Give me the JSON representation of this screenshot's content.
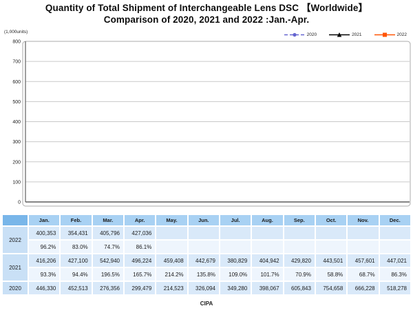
{
  "title": {
    "line1": "Quantity of Total Shipment of Interchangeable Lens DSC 【Worldwide】",
    "line2": "Comparison of 2020, 2021 and 2022 :Jan.-Apr."
  },
  "chart": {
    "unit_label": "(1,000units)"
  },
  "chart_data": {
    "type": "line",
    "title": "Quantity of Total Shipment of Interchangeable Lens DSC 【Worldwide】 Comparison of 2020, 2021 and 2022 :Jan.-Apr.",
    "categories": [
      "Jan.",
      "Feb.",
      "Mar.",
      "Apr.",
      "May.",
      "Jun.",
      "Jul.",
      "Aug.",
      "Sep.",
      "Oct.",
      "Nov.",
      "Dec."
    ],
    "unit": "1,000units",
    "ylim": [
      0,
      800
    ],
    "y_ticks": [
      0,
      100,
      200,
      300,
      400,
      500,
      600,
      700,
      800
    ],
    "grid": true,
    "legend_position": "top-right",
    "series": [
      {
        "name": "2020",
        "color": "#6565D0",
        "style": "dashed",
        "marker": "circle",
        "values": [
          446330,
          452513,
          276356,
          299479,
          214523,
          326094,
          349280,
          398067,
          605843,
          754658,
          666228,
          518278
        ]
      },
      {
        "name": "2021",
        "color": "#000000",
        "style": "solid",
        "marker": "triangle",
        "values": [
          416206,
          427100,
          542940,
          496224,
          459408,
          442679,
          380829,
          404942,
          429820,
          443501,
          457601,
          447021
        ]
      },
      {
        "name": "2022",
        "color": "#FF5404",
        "style": "solid",
        "marker": "square",
        "values": [
          400353,
          354431,
          405796,
          427036,
          null,
          null,
          null,
          null,
          null,
          null,
          null,
          null
        ]
      }
    ]
  },
  "table": {
    "months": [
      "Jan.",
      "Feb.",
      "Mar.",
      "Apr.",
      "May.",
      "Jun.",
      "Jul.",
      "Aug.",
      "Sep.",
      "Oct.",
      "Nov.",
      "Dec."
    ],
    "groups": [
      {
        "year": "2022",
        "rows": [
          {
            "type": "values",
            "cells": [
              "400,353",
              "354,431",
              "405,796",
              "427,036",
              "",
              "",
              "",
              "",
              "",
              "",
              "",
              ""
            ]
          },
          {
            "type": "percent",
            "cells": [
              "96.2%",
              "83.0%",
              "74.7%",
              "86.1%",
              "",
              "",
              "",
              "",
              "",
              "",
              "",
              ""
            ]
          }
        ]
      },
      {
        "year": "2021",
        "rows": [
          {
            "type": "values",
            "cells": [
              "416,206",
              "427,100",
              "542,940",
              "496,224",
              "459,408",
              "442,679",
              "380,829",
              "404,942",
              "429,820",
              "443,501",
              "457,601",
              "447,021"
            ]
          },
          {
            "type": "percent",
            "cells": [
              "93.3%",
              "94.4%",
              "196.5%",
              "165.7%",
              "214.2%",
              "135.8%",
              "109.0%",
              "101.7%",
              "70.9%",
              "58.8%",
              "68.7%",
              "86.3%"
            ]
          }
        ]
      },
      {
        "year": "2020",
        "rows": [
          {
            "type": "values",
            "cells": [
              "446,330",
              "452,513",
              "276,356",
              "299,479",
              "214,523",
              "326,094",
              "349,280",
              "398,067",
              "605,843",
              "754,658",
              "666,228",
              "518,278"
            ]
          }
        ]
      }
    ]
  },
  "footer": {
    "source": "CIPA"
  },
  "colors": {
    "series_2020": "#6565D0",
    "series_2021": "#000000",
    "series_2022": "#FF5404",
    "gridline": "#C9C9C9",
    "plot_border": "#ABABAB",
    "axis": "#5E5E5E",
    "header_corner_bg": "#79B6E9",
    "header_month_bg": "#A8D1F3",
    "year_cell_bg": "#C9E0F6",
    "value_cell_bg": "#D9E9F9",
    "percent_cell_bg": "#EEF5FD"
  }
}
